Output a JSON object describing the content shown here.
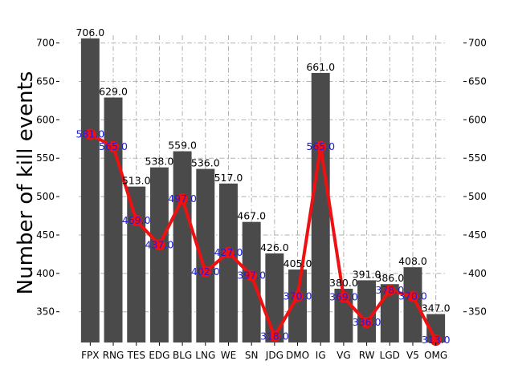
{
  "chart_data": {
    "type": "bar",
    "title": "",
    "xlabel": "",
    "ylabel": "Number of kill events",
    "ylim": [
      310,
      710
    ],
    "yticks": [
      350,
      400,
      450,
      500,
      550,
      600,
      650,
      700
    ],
    "grid": true,
    "categories": [
      "FPX",
      "RNG",
      "TES",
      "EDG",
      "BLG",
      "LNG",
      "WE",
      "SN",
      "JDG",
      "DMO",
      "IG",
      "VG",
      "RW",
      "LGD",
      "V5",
      "OMG"
    ],
    "series": [
      {
        "kind": "bar",
        "color": "#4a4a4a",
        "values": [
          706.0,
          629.0,
          513.0,
          538.0,
          559.0,
          536.0,
          517.0,
          467.0,
          426.0,
          405.0,
          661.0,
          380.0,
          391.0,
          386.0,
          408.0,
          347.0
        ]
      },
      {
        "kind": "line",
        "color": "#ee1111",
        "label_color": "#1f1fd6",
        "values": [
          581.0,
          565.0,
          469.0,
          437.0,
          497.0,
          402.0,
          427.0,
          397.0,
          318.0,
          370.0,
          565.0,
          369.0,
          336.0,
          378.0,
          370.0,
          313.0
        ]
      }
    ]
  }
}
